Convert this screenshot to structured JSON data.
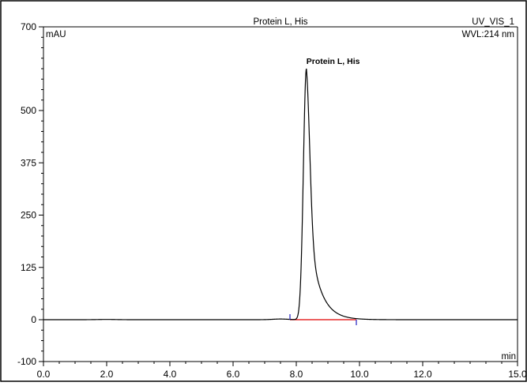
{
  "chart_data": {
    "type": "line",
    "title": "Protein L, His",
    "channel": "UV_VIS_1",
    "wavelength": "WVL:214 nm",
    "ylabel": "mAU",
    "xlabel": "min",
    "xlim": [
      0,
      15
    ],
    "ylim": [
      -100,
      700
    ],
    "x_ticks": [
      0,
      2,
      4,
      6,
      8,
      10,
      12,
      15
    ],
    "x_tick_labels": [
      "0.0",
      "2.0",
      "4.0",
      "6.0",
      "8.0",
      "10.0",
      "12.0",
      "15.0"
    ],
    "y_ticks": [
      -100,
      0,
      125,
      250,
      375,
      500,
      700
    ],
    "y_tick_labels": [
      "-100",
      "0",
      "125",
      "250",
      "375",
      "500",
      "700"
    ],
    "grid": false,
    "peaks": [
      {
        "name": "Protein L, His",
        "retention_time": 8.32,
        "height": 600,
        "start_time": 7.8,
        "end_time": 9.9
      }
    ],
    "colors": {
      "trace": "#000000",
      "baseline": "#e00000",
      "peak_marker": "#2020c0",
      "frame": "#000000"
    }
  }
}
